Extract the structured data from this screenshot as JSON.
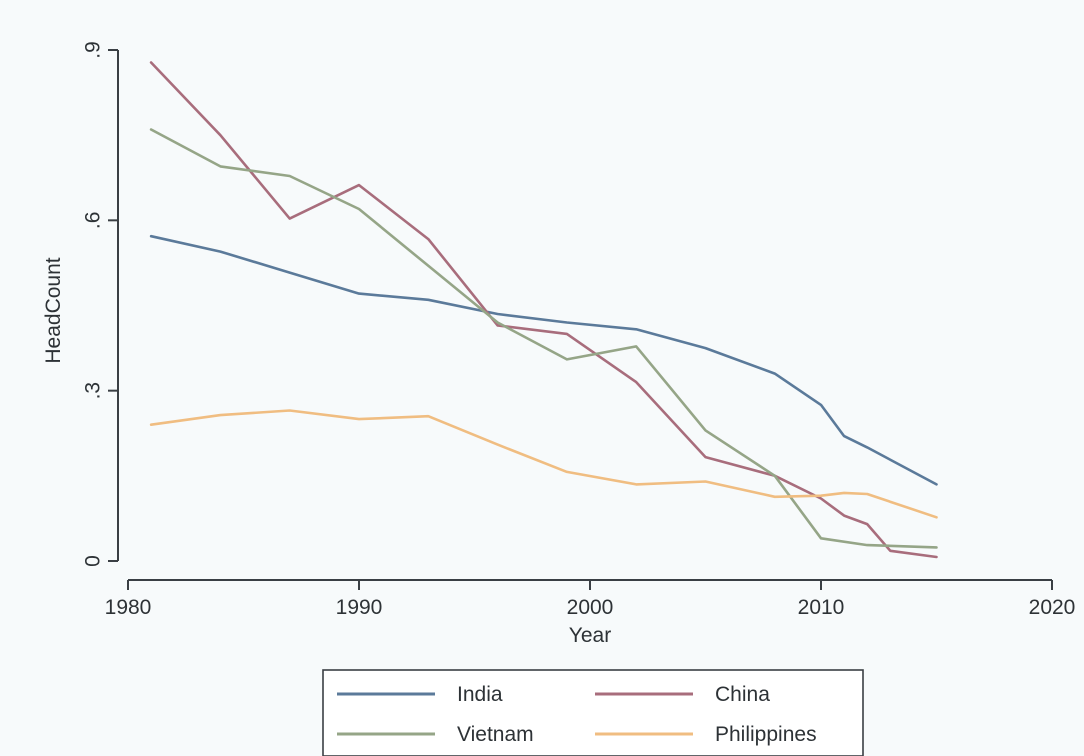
{
  "chart_data": {
    "type": "line",
    "xlabel": "Year",
    "ylabel": "HeadCount",
    "xlim": [
      1980,
      2020
    ],
    "ylim": [
      0,
      0.9
    ],
    "x_ticks": [
      1980,
      1990,
      2000,
      2010,
      2020
    ],
    "x_tick_labels": [
      "1980",
      "1990",
      "2000",
      "2010",
      "2020"
    ],
    "y_ticks": [
      0,
      0.3,
      0.6,
      0.9
    ],
    "y_tick_labels": [
      "0",
      ".3",
      ".6",
      ".9"
    ],
    "grid": false,
    "legend_position": "bottom",
    "legend_columns": 2,
    "series": [
      {
        "name": "India",
        "color": "#5b7a9a",
        "x": [
          1981,
          1984,
          1987,
          1990,
          1993,
          1996,
          1999,
          2002,
          2005,
          2008,
          2010,
          2011,
          2012,
          2015
        ],
        "y": [
          0.572,
          0.545,
          0.508,
          0.471,
          0.46,
          0.435,
          0.42,
          0.408,
          0.375,
          0.33,
          0.275,
          0.22,
          0.2,
          0.135
        ]
      },
      {
        "name": "China",
        "color": "#a86d7c",
        "x": [
          1981,
          1984,
          1987,
          1990,
          1993,
          1996,
          1999,
          2002,
          2005,
          2008,
          2010,
          2011,
          2012,
          2013,
          2015
        ],
        "y": [
          0.878,
          0.75,
          0.603,
          0.662,
          0.567,
          0.415,
          0.4,
          0.315,
          0.183,
          0.15,
          0.11,
          0.08,
          0.065,
          0.018,
          0.007
        ]
      },
      {
        "name": "Vietnam",
        "color": "#95a587",
        "x": [
          1981,
          1984,
          1987,
          1990,
          1993,
          1996,
          1999,
          2002,
          2005,
          2008,
          2010,
          2012,
          2015
        ],
        "y": [
          0.76,
          0.695,
          0.678,
          0.62,
          0.52,
          0.42,
          0.355,
          0.378,
          0.23,
          0.15,
          0.04,
          0.028,
          0.024
        ]
      },
      {
        "name": "Philippines",
        "color": "#f0bd81",
        "x": [
          1981,
          1984,
          1987,
          1990,
          1993,
          1996,
          1999,
          2002,
          2005,
          2008,
          2010,
          2011,
          2012,
          2015
        ],
        "y": [
          0.24,
          0.257,
          0.265,
          0.25,
          0.255,
          0.205,
          0.157,
          0.135,
          0.14,
          0.113,
          0.115,
          0.12,
          0.118,
          0.077
        ]
      }
    ]
  }
}
